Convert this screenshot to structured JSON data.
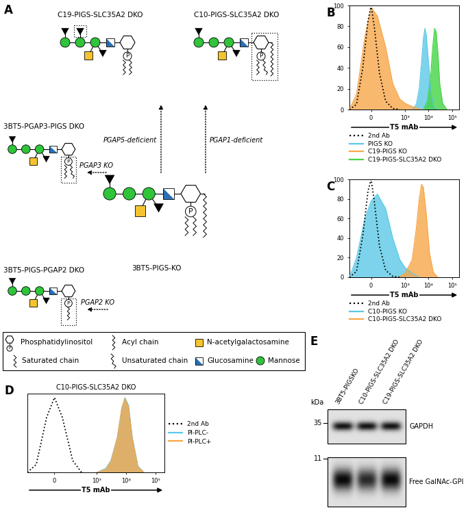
{
  "diagram": {
    "panel": "A",
    "center": {
      "label": "3BT5-PIGS-KO"
    },
    "products": [
      {
        "label": "C19-PIGS-SLC35A2 DKO",
        "via": "PGAP5-deficient"
      },
      {
        "label": "C10-PIGS-SLC35A2 DKO",
        "via": "PGAP1-deficient"
      },
      {
        "label": "3BT5-PGAP3-PIGS DKO",
        "via": "PGAP3 KO"
      },
      {
        "label": "3BT5-PIGS-PGAP2 DKO",
        "via": "PGAP2 KO"
      }
    ],
    "phosphate_symbol": "P",
    "legend": {
      "phosphatidylinositol": "Phosphatidylinositol",
      "acyl_chain": "Acyl chain",
      "galnac": "N-acetylgalactosamine",
      "saturated": "Saturated chain",
      "unsaturated": "Unsaturated chain",
      "glucosamine": "Glucosamine",
      "mannose": "Mannose"
    }
  },
  "chart_data": [
    {
      "panel": "B",
      "type": "line",
      "x_label": "T5 mAb",
      "log": "x",
      "legend": "below",
      "xlim": [
        -300,
        200000
      ],
      "ylim": [
        0,
        100
      ],
      "xticks": [
        0,
        {
          "value": 1000,
          "label": "10³"
        },
        {
          "value": 10000,
          "label": "10⁴"
        },
        {
          "value": 100000,
          "label": "10⁵"
        }
      ],
      "yticks": [
        0,
        20,
        40,
        60,
        80,
        100
      ],
      "series": [
        {
          "name": "2nd Ab",
          "type": "line",
          "line_style": "dotted",
          "color": "#000000",
          "x": [
            -300,
            -150,
            -80,
            -30,
            0,
            30,
            80,
            150,
            300,
            600
          ],
          "values": [
            0,
            5,
            40,
            85,
            100,
            80,
            35,
            8,
            1,
            0
          ]
        },
        {
          "name": "PIGS KO",
          "type": "area",
          "line_style": "solid",
          "color": "#5bc8e6",
          "x": [
            2000,
            3000,
            4000,
            5000,
            6000,
            7000,
            8000,
            10000,
            13000,
            17000,
            25000
          ],
          "values": [
            0,
            5,
            20,
            45,
            68,
            78,
            72,
            45,
            15,
            3,
            0
          ]
        },
        {
          "name": "C19-PIGS KO",
          "type": "area",
          "line_style": "solid",
          "color": "#f7a649",
          "x": [
            -300,
            -150,
            -60,
            0,
            60,
            150,
            300,
            600,
            1000,
            2000,
            5000
          ],
          "values": [
            0,
            15,
            70,
            98,
            90,
            60,
            25,
            10,
            6,
            3,
            0
          ]
        },
        {
          "name": "C19-PIGS-SLC35A2 DKO",
          "type": "area",
          "line_style": "solid",
          "color": "#45d445",
          "x": [
            6000,
            9000,
            12000,
            15000,
            18000,
            21000,
            25000,
            30000,
            40000,
            60000
          ],
          "values": [
            0,
            8,
            30,
            60,
            78,
            75,
            55,
            25,
            6,
            0
          ]
        }
      ]
    },
    {
      "panel": "C",
      "type": "line",
      "x_label": "T5 mAb",
      "log": "x",
      "legend": "below",
      "xlim": [
        -300,
        200000
      ],
      "ylim": [
        0,
        100
      ],
      "xticks": [
        0,
        {
          "value": 1000,
          "label": "10³"
        },
        {
          "value": 10000,
          "label": "10⁴"
        },
        {
          "value": 100000,
          "label": "10⁵"
        }
      ],
      "yticks": [
        0,
        20,
        40,
        60,
        80,
        100
      ],
      "series": [
        {
          "name": "2nd Ab",
          "type": "line",
          "line_style": "dotted",
          "color": "#000000",
          "x": [
            -300,
            -150,
            -80,
            -30,
            0,
            30,
            80,
            150,
            300,
            600
          ],
          "values": [
            0,
            6,
            42,
            88,
            100,
            78,
            32,
            7,
            1,
            0
          ]
        },
        {
          "name": "C10-PIGS KO",
          "type": "area",
          "line_style": "solid",
          "color": "#5bc8e6",
          "x": [
            -300,
            -150,
            -60,
            0,
            60,
            150,
            300,
            600,
            1000,
            2000,
            4000
          ],
          "values": [
            0,
            20,
            60,
            78,
            85,
            70,
            40,
            18,
            10,
            4,
            0
          ]
        },
        {
          "name": "C10-PIGS-SLC35A2 DKO",
          "type": "area",
          "line_style": "solid",
          "color": "#f7a649",
          "x": [
            500,
            1000,
            2000,
            3000,
            4000,
            5000,
            6000,
            8000,
            11000,
            16000,
            25000
          ],
          "values": [
            0,
            4,
            18,
            50,
            80,
            95,
            92,
            65,
            25,
            5,
            0
          ]
        }
      ]
    },
    {
      "panel": "D",
      "type": "line",
      "title": "C10-PIGS-SLC35A2 DKO",
      "x_label": "T5 mAb",
      "log": "x",
      "legend": "right",
      "tick_labels": "x",
      "xlim": [
        -300,
        200000
      ],
      "ylim": [
        0,
        100
      ],
      "xticks": [
        0,
        {
          "value": 1000,
          "label": "10³"
        },
        {
          "value": 10000,
          "label": "10⁴"
        },
        {
          "value": 100000,
          "label": "10⁵"
        }
      ],
      "series": [
        {
          "name": "2nd Ab",
          "type": "line",
          "line_style": "dotted",
          "color": "#000000",
          "x": [
            -300,
            -150,
            -60,
            0,
            60,
            150,
            300
          ],
          "values": [
            0,
            10,
            70,
            95,
            70,
            15,
            0
          ]
        },
        {
          "name": "PI-PLC-",
          "type": "area",
          "line_style": "solid",
          "color": "#5bc8e6",
          "x": [
            1000,
            2000,
            3000,
            5000,
            7000,
            9000,
            12000,
            16000,
            25000,
            40000
          ],
          "values": [
            0,
            5,
            15,
            45,
            80,
            95,
            85,
            45,
            8,
            0
          ]
        },
        {
          "name": "PI-PLC+",
          "type": "area",
          "line_style": "solid",
          "color": "#f7a649",
          "x": [
            1000,
            2000,
            3000,
            5000,
            7000,
            9000,
            12000,
            16000,
            25000,
            40000
          ],
          "values": [
            0,
            4,
            14,
            45,
            82,
            94,
            83,
            43,
            7,
            0
          ]
        }
      ]
    }
  ],
  "blot": {
    "panel": "E",
    "unit": "kDa",
    "lanes": [
      "3BT5-PIGSKO",
      "C10-PIGS-SLC35A2 DKO",
      "C19-PIGS-SLC35A2 DKO"
    ],
    "bands": [
      {
        "label": "GAPDH",
        "kda": 35
      },
      {
        "label": "Free GalNAc-GPI",
        "kda": 11
      }
    ]
  }
}
